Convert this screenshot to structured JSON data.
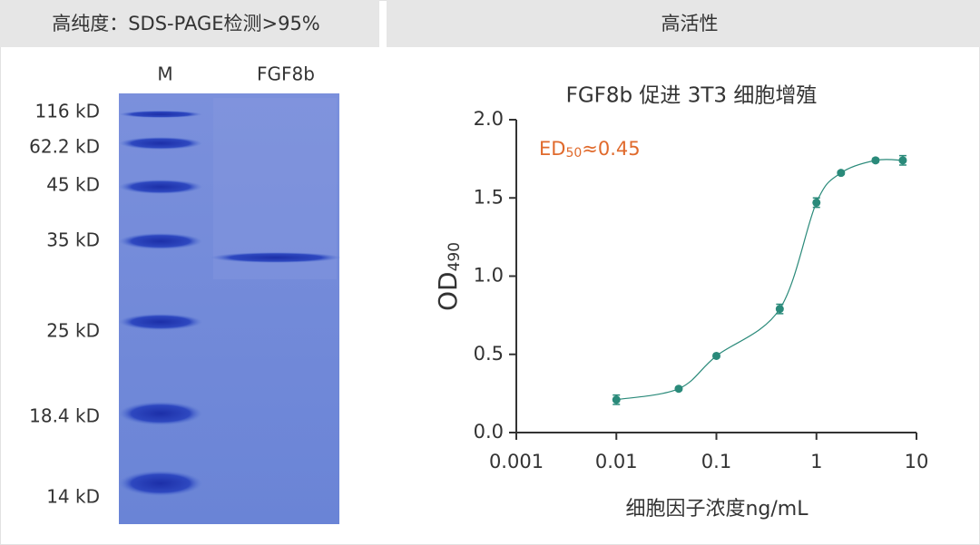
{
  "panels": {
    "left_header": "高纯度：SDS-PAGE检测>95%",
    "right_header": "高活性"
  },
  "gel": {
    "lanes": [
      "M",
      "FGF8b"
    ],
    "markers": [
      "116 kD",
      "62.2 kD",
      "45 kD",
      "35 kD",
      "25 kD",
      "18.4 kD",
      "14 kD"
    ]
  },
  "chart_data": {
    "type": "scatter",
    "title": "FGF8b 促进 3T3 细胞增殖",
    "annotation": [
      "ED",
      "50",
      "≈0.45"
    ],
    "ylabel": [
      "OD",
      "490"
    ],
    "xlabel": "细胞因子浓度ng/mL",
    "xscale": "log",
    "xlim": [
      0.001,
      10
    ],
    "xticks": [
      0.001,
      0.01,
      0.1,
      1,
      10
    ],
    "ylim": [
      0,
      2
    ],
    "yticks": [
      {
        "value": 0,
        "label": "0.0"
      },
      {
        "value": 0.5,
        "label": "0.5"
      },
      {
        "value": 1,
        "label": "1.0"
      },
      {
        "value": 1.5,
        "label": "1.5"
      },
      {
        "value": 2,
        "label": "2.0"
      }
    ],
    "series": [
      {
        "color": "#2a8a7a",
        "x": [
          0.01,
          0.042,
          0.1,
          0.43,
          1,
          1.76,
          3.9,
          7.3
        ],
        "values": [
          0.21,
          0.28,
          0.49,
          0.79,
          1.47,
          1.66,
          1.74,
          1.74
        ],
        "errors": [
          0.03,
          0.01,
          0.01,
          0.03,
          0.03,
          0.01,
          0.01,
          0.03
        ]
      }
    ]
  }
}
